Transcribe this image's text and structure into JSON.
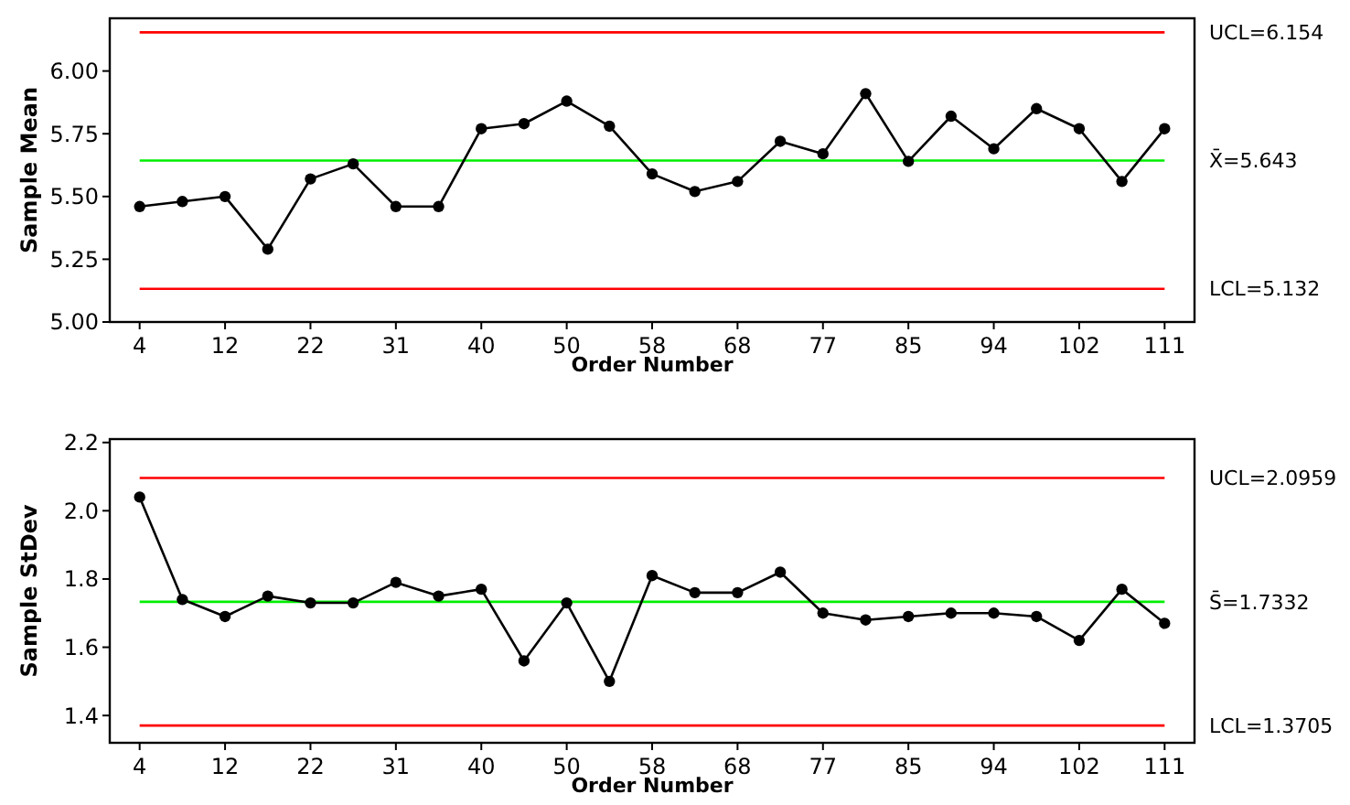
{
  "chart_data": [
    {
      "type": "line",
      "xlabel": "Order Number",
      "ylabel": "Sample Mean",
      "marker": "circle",
      "grid": false,
      "categories": [
        "4",
        null,
        "12",
        null,
        "22",
        null,
        "31",
        null,
        "40",
        null,
        "50",
        null,
        "58",
        null,
        "68",
        null,
        "77",
        null,
        "85",
        null,
        "94",
        null,
        "102",
        null,
        "111"
      ],
      "series": [
        {
          "color": "#000000",
          "values": [
            5.46,
            5.48,
            5.5,
            5.29,
            5.57,
            5.63,
            5.46,
            5.46,
            5.77,
            5.79,
            5.88,
            5.78,
            5.59,
            5.52,
            5.56,
            5.72,
            5.67,
            5.91,
            5.64,
            5.82,
            5.69,
            5.85,
            5.77,
            5.56,
            5.77
          ]
        }
      ],
      "ylim": [
        5.0,
        6.21
      ],
      "yticks": [
        {
          "value": 5,
          "label": "5.00"
        },
        {
          "value": 5.25,
          "label": "5.25"
        },
        {
          "value": 5.5,
          "label": "5.50"
        },
        {
          "value": 5.75,
          "label": "5.75"
        },
        {
          "value": 6,
          "label": "6.00"
        }
      ],
      "ref_lines": [
        {
          "axis": "y",
          "value": 6.154,
          "label": "UCL=6.154",
          "color": "#ff0000"
        },
        {
          "axis": "y",
          "value": 5.643,
          "label": "X̄=5.643",
          "color": "#00ee00"
        },
        {
          "axis": "y",
          "value": 5.132,
          "label": "LCL=5.132",
          "color": "#ff0000"
        }
      ]
    },
    {
      "type": "line",
      "xlabel": "Order Number",
      "ylabel": "Sample StDev",
      "marker": "circle",
      "grid": false,
      "categories": [
        "4",
        null,
        "12",
        null,
        "22",
        null,
        "31",
        null,
        "40",
        null,
        "50",
        null,
        "58",
        null,
        "68",
        null,
        "77",
        null,
        "85",
        null,
        "94",
        null,
        "102",
        null,
        "111"
      ],
      "series": [
        {
          "color": "#000000",
          "values": [
            2.04,
            1.74,
            1.69,
            1.75,
            1.73,
            1.73,
            1.79,
            1.75,
            1.77,
            1.56,
            1.73,
            1.5,
            1.81,
            1.76,
            1.76,
            1.82,
            1.7,
            1.68,
            1.69,
            1.7,
            1.7,
            1.69,
            1.62,
            1.77,
            1.67
          ]
        }
      ],
      "ylim": [
        1.32,
        2.21
      ],
      "yticks": [
        {
          "value": 1.4,
          "label": "1.4"
        },
        {
          "value": 1.6,
          "label": "1.6"
        },
        {
          "value": 1.8,
          "label": "1.8"
        },
        {
          "value": 2.0,
          "label": "2.0"
        },
        {
          "value": 2.2,
          "label": "2.2"
        }
      ],
      "ref_lines": [
        {
          "axis": "y",
          "value": 2.0959,
          "label": "UCL=2.0959",
          "color": "#ff0000"
        },
        {
          "axis": "y",
          "value": 1.7332,
          "label": "S̄=1.7332",
          "color": "#00ee00"
        },
        {
          "axis": "y",
          "value": 1.3705,
          "label": "LCL=1.3705",
          "color": "#ff0000"
        }
      ]
    }
  ]
}
